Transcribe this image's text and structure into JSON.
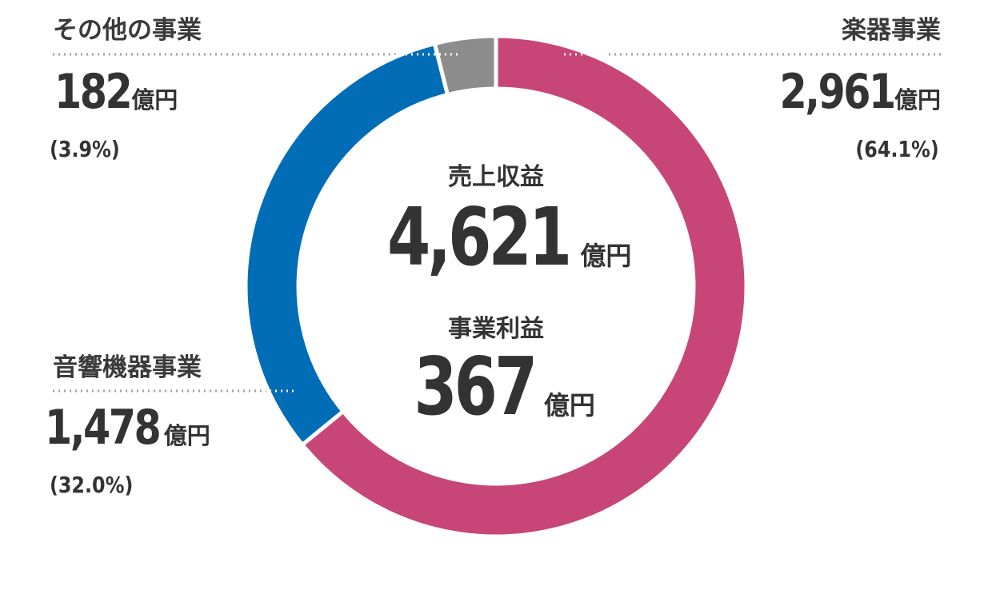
{
  "chart_data": {
    "type": "pie",
    "variant": "donut",
    "slices": [
      {
        "label": "楽器事業",
        "value": 2961,
        "unit": "億円",
        "percent": "(64.1%)",
        "color": "#c84677"
      },
      {
        "label": "音響機器事業",
        "value": 1478,
        "unit": "億円",
        "percent": "(32.0%)",
        "color": "#016db6"
      },
      {
        "label": "その他の事業",
        "value": 182,
        "unit": "億円",
        "percent": "(3.9%)",
        "color": "#8c8c8c"
      }
    ],
    "center": {
      "revenue_label": "売上収益",
      "revenue_value": "4,621",
      "revenue_unit": "億円",
      "profit_label": "事業利益",
      "profit_value": "367",
      "profit_unit": "億円"
    }
  },
  "labels": {
    "instruments": {
      "title": "楽器事業",
      "value": "2,961",
      "unit": "億円",
      "percent": "(64.1%)"
    },
    "audio": {
      "title": "音響機器事業",
      "value": "1,478",
      "unit": "億円",
      "percent": "(32.0%)"
    },
    "other": {
      "title": "その他の事業",
      "value": "182",
      "unit": "億円",
      "percent": "(3.9%)"
    }
  }
}
